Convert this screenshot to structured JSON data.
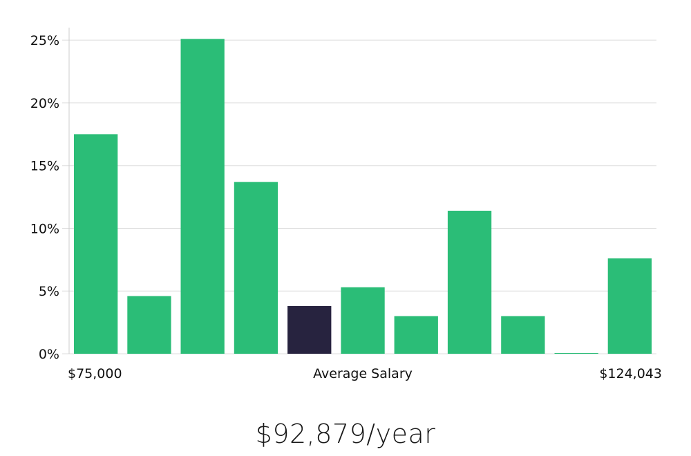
{
  "chart_data": {
    "type": "bar",
    "title": "",
    "xlabel": "Average Salary",
    "ylabel": "",
    "x_range_labels": {
      "min": "$75,000",
      "max": "$124,043"
    },
    "ylim": [
      0,
      26
    ],
    "yticks": [
      0,
      5,
      10,
      15,
      20,
      25
    ],
    "ytick_format": "{v}%",
    "grid": "horizontal",
    "values": [
      17.5,
      4.6,
      25.1,
      13.7,
      3.8,
      5.3,
      3.0,
      11.4,
      3.0,
      0.05,
      7.6
    ],
    "highlight_index": 4,
    "colors": {
      "bar": "#2bbd77",
      "highlight": "#27233f",
      "grid": "#dddddd",
      "axis": "#cccccc"
    }
  },
  "caption": {
    "salary": "$92,879/year"
  }
}
